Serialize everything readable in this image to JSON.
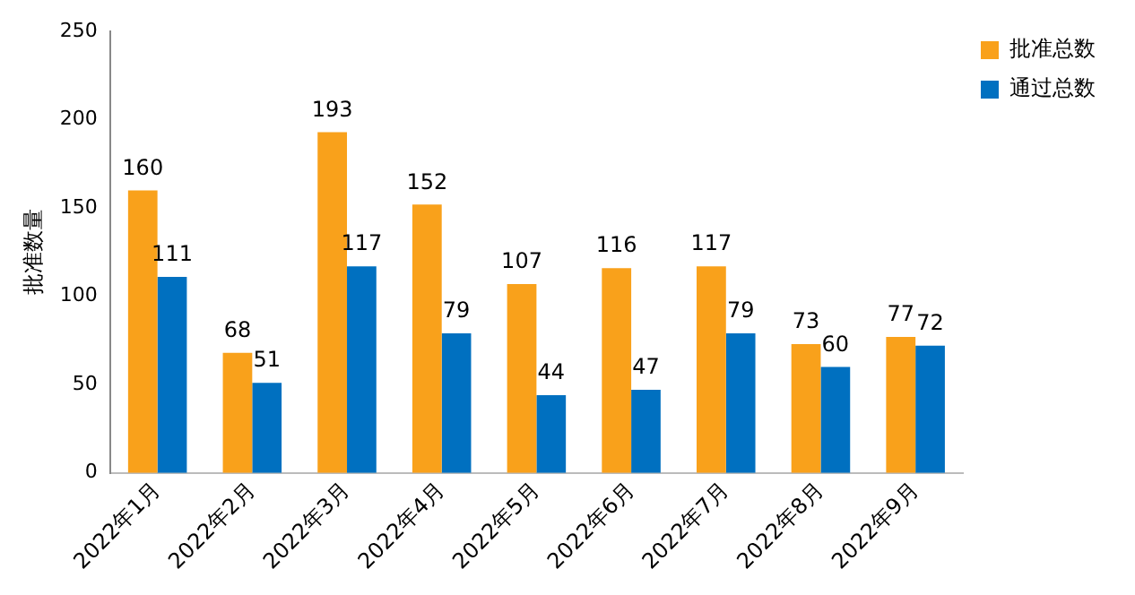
{
  "chart_data": {
    "type": "bar",
    "ylabel": "批准数量",
    "categories": [
      "2022年1月",
      "2022年2月",
      "2022年3月",
      "2022年4月",
      "2022年5月",
      "2022年6月",
      "2022年7月",
      "2022年8月",
      "2022年9月"
    ],
    "series": [
      {
        "name": "批准总数",
        "color": "#f9a11b",
        "values": [
          160,
          68,
          193,
          152,
          107,
          116,
          117,
          73,
          77
        ]
      },
      {
        "name": "通过总数",
        "color": "#0070c0",
        "values": [
          111,
          51,
          117,
          79,
          44,
          47,
          79,
          60,
          72
        ]
      }
    ],
    "ylim": [
      0,
      250
    ],
    "yticks": [
      0,
      50,
      100,
      150,
      200,
      250
    ],
    "grid": false,
    "legend": "top right",
    "data_labels": true
  }
}
